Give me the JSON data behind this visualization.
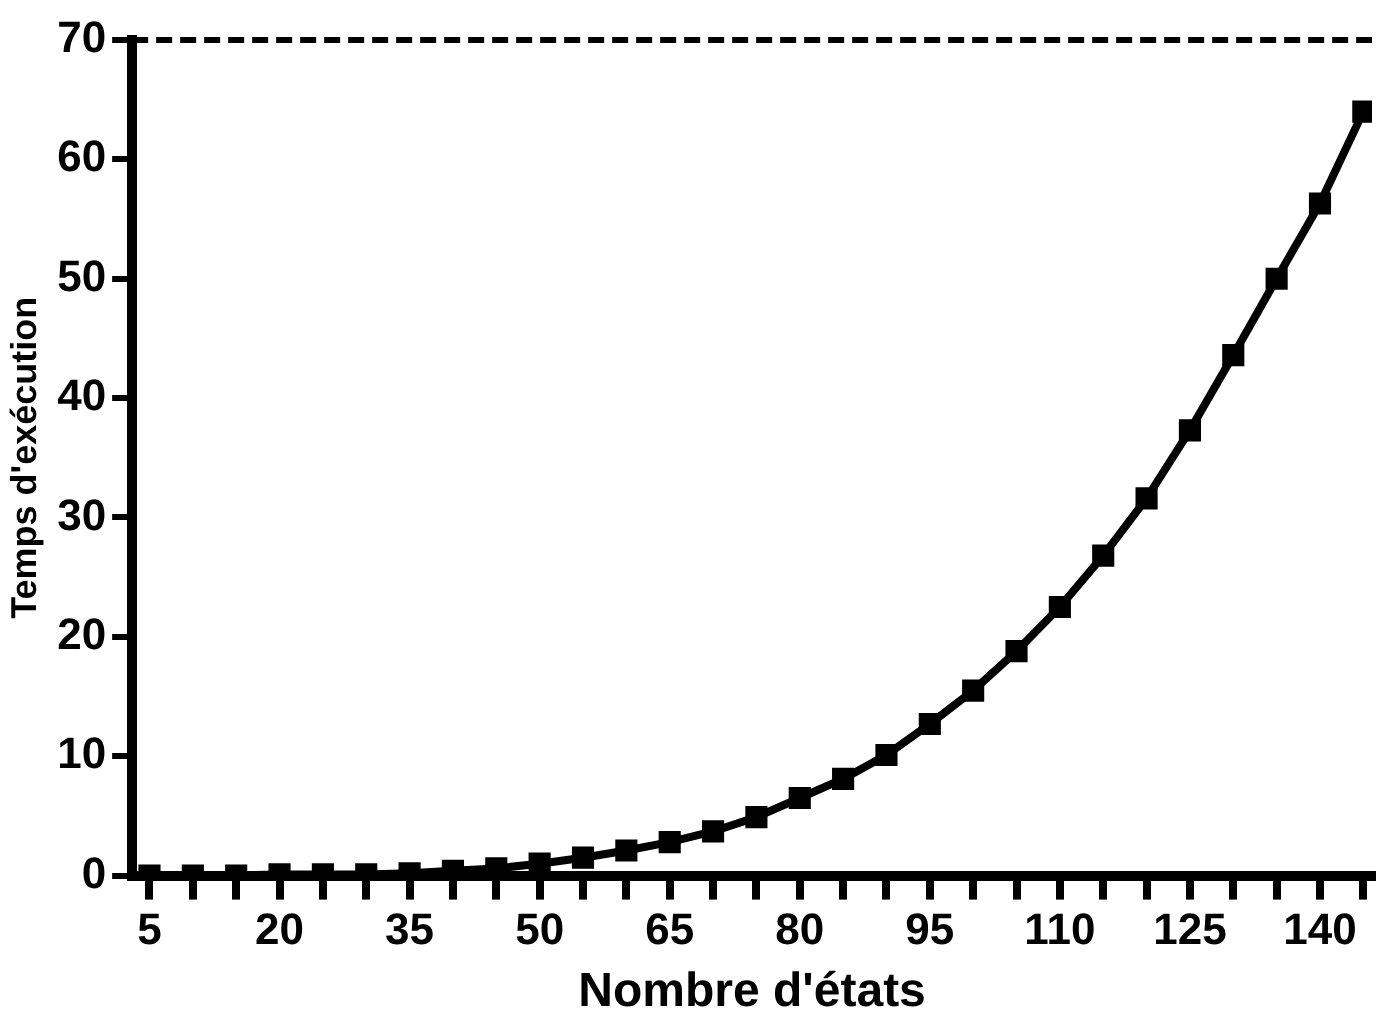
{
  "chart_data": {
    "type": "line",
    "xlabel": "Nombre d'états",
    "ylabel": "Temps d'exécution",
    "x": [
      5,
      10,
      15,
      20,
      25,
      30,
      35,
      40,
      45,
      50,
      55,
      60,
      65,
      70,
      75,
      80,
      85,
      90,
      95,
      100,
      105,
      110,
      115,
      120,
      125,
      130,
      135,
      140,
      145
    ],
    "series": [
      {
        "color": "#000000",
        "values": [
          0,
          0,
          0,
          0.1,
          0.1,
          0.1,
          0.2,
          0.4,
          0.6,
          1.0,
          1.5,
          2.1,
          2.8,
          3.7,
          4.9,
          6.5,
          8.1,
          10.1,
          12.7,
          15.5,
          18.8,
          22.5,
          26.8,
          31.6,
          37.3,
          43.6,
          50,
          56.3,
          64
        ]
      }
    ],
    "xlim": [
      3,
      146
    ],
    "xticks": [
      5,
      {
        "value": 10,
        "label": null
      },
      {
        "value": 15,
        "label": null
      },
      20,
      {
        "value": 25,
        "label": null
      },
      {
        "value": 30,
        "label": null
      },
      35,
      {
        "value": 40,
        "label": null
      },
      {
        "value": 45,
        "label": null
      },
      50,
      {
        "value": 55,
        "label": null
      },
      {
        "value": 60,
        "label": null
      },
      65,
      {
        "value": 70,
        "label": null
      },
      {
        "value": 75,
        "label": null
      },
      80,
      {
        "value": 85,
        "label": null
      },
      {
        "value": 90,
        "label": null
      },
      95,
      {
        "value": 100,
        "label": null
      },
      {
        "value": 105,
        "label": null
      },
      110,
      {
        "value": 115,
        "label": null
      },
      {
        "value": 120,
        "label": null
      },
      125,
      {
        "value": 130,
        "label": null
      },
      {
        "value": 135,
        "label": null
      },
      140,
      {
        "value": 145,
        "label": null
      }
    ],
    "ylim": [
      0,
      70
    ],
    "yticks": [
      0,
      10,
      20,
      30,
      40,
      50,
      60,
      70
    ],
    "ref_lines": [
      {
        "axis": "y",
        "value": 70,
        "color": "#000000",
        "line_style": "dashed"
      }
    ],
    "grid": false,
    "legend": false,
    "marker": "square",
    "line_style": "solid"
  }
}
